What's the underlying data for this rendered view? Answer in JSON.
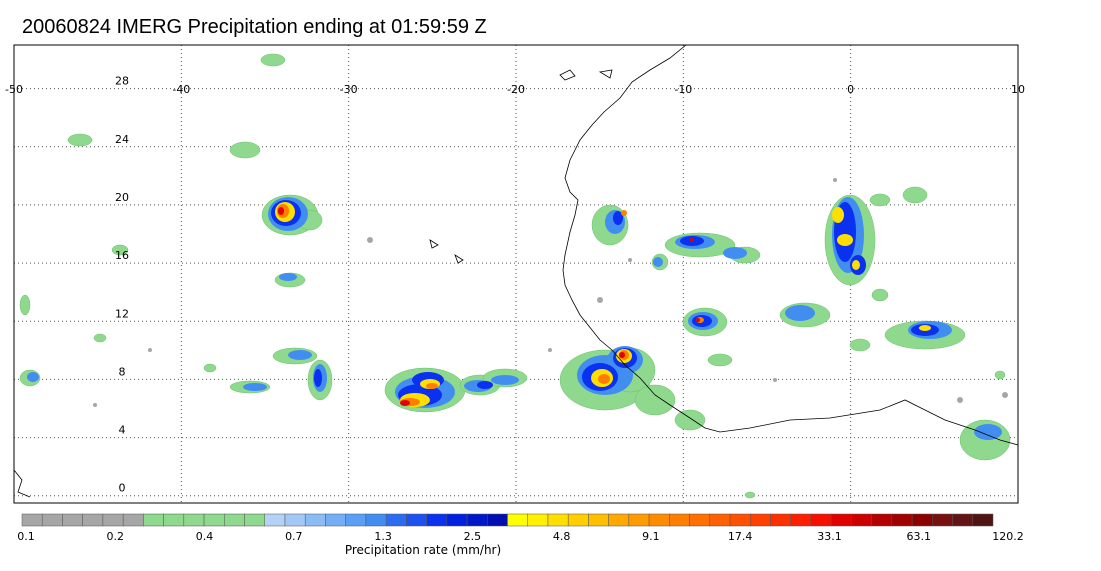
{
  "title": "20060824 IMERG Precipitation ending at 01:59:59 Z",
  "map": {
    "lon_range": [
      -50,
      10
    ],
    "lat_range": [
      -0.5,
      31
    ],
    "lon_ticks": [
      "-50",
      "-40",
      "-30",
      "-20",
      "-10",
      "0",
      "10"
    ],
    "lat_ticks": [
      "28",
      "24",
      "20",
      "16",
      "12",
      "8",
      "4",
      "0"
    ],
    "gridlines": "dotted",
    "coastline_color": "#000000"
  },
  "colorbar": {
    "title": "Precipitation rate (mm/hr)",
    "labels": [
      "0.1",
      "0.2",
      "0.4",
      "0.7",
      "1.3",
      "2.5",
      "4.8",
      "9.1",
      "17.4",
      "33.1",
      "63.1",
      "120.2"
    ],
    "colors": [
      "#a6a6a6",
      "#a6a6a6",
      "#a6a6a6",
      "#a6a6a6",
      "#a6a6a6",
      "#a6a6a6",
      "#8ed98e",
      "#8ed98e",
      "#8ed98e",
      "#8ed98e",
      "#8ed98e",
      "#8ed98e",
      "#b4d2f5",
      "#a3c8f5",
      "#8cbcf5",
      "#74aef5",
      "#5a9ef5",
      "#428ef0",
      "#2c6cf0",
      "#1e52f0",
      "#0a30f0",
      "#0020e0",
      "#0018c8",
      "#0010b0",
      "#ffff00",
      "#ffef00",
      "#ffdf00",
      "#ffcf00",
      "#ffbf00",
      "#ffa800",
      "#ff9a00",
      "#ff8c00",
      "#ff7e00",
      "#ff7000",
      "#ff6000",
      "#ff5000",
      "#ff4000",
      "#ff3000",
      "#ff1f00",
      "#f51000",
      "#e00000",
      "#cc0000",
      "#b40000",
      "#a00000",
      "#8c0000",
      "#781010",
      "#641414",
      "#501414"
    ]
  }
}
